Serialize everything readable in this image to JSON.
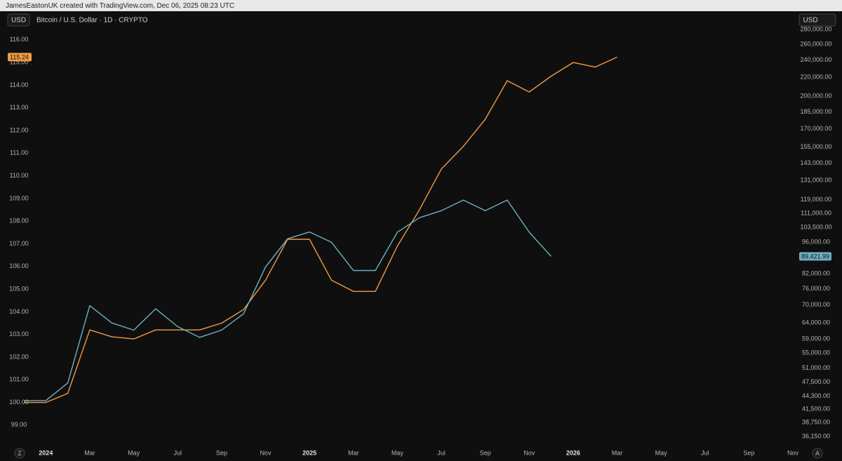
{
  "header": {
    "attribution": "JamesEastonUK created with TradingView.com, Dec 06, 2025 08:23 UTC",
    "currency_left": "USD",
    "symbol": "Bitcoin / U.S. Dollar · 1D · CRYPTO",
    "currency_right": "USD"
  },
  "footer_buttons": [
    "Z",
    "A"
  ],
  "chart_data": {
    "type": "line",
    "x": [
      "2023-12",
      "2024-01",
      "2024-02",
      "2024-03",
      "2024-04",
      "2024-05",
      "2024-06",
      "2024-07",
      "2024-08",
      "2024-09",
      "2024-10",
      "2024-11",
      "2024-12",
      "2025-01",
      "2025-02",
      "2025-03",
      "2025-04",
      "2025-05",
      "2025-06",
      "2025-07",
      "2025-08",
      "2025-09",
      "2025-10",
      "2025-11",
      "2025-12",
      "2026-01",
      "2026-02",
      "2026-03"
    ],
    "xlim": [
      "2023-12",
      "2026-11"
    ],
    "xticks": [
      {
        "value": "2024-01",
        "label": "2024"
      },
      {
        "value": "2024-03",
        "label": "Mar"
      },
      {
        "value": "2024-05",
        "label": "May"
      },
      {
        "value": "2024-07",
        "label": "Jul"
      },
      {
        "value": "2024-09",
        "label": "Sep"
      },
      {
        "value": "2024-11",
        "label": "Nov"
      },
      {
        "value": "2025-01",
        "label": "2025"
      },
      {
        "value": "2025-03",
        "label": "Mar"
      },
      {
        "value": "2025-05",
        "label": "May"
      },
      {
        "value": "2025-07",
        "label": "Jul"
      },
      {
        "value": "2025-09",
        "label": "Sep"
      },
      {
        "value": "2025-11",
        "label": "Nov"
      },
      {
        "value": "2026-01",
        "label": "2026"
      },
      {
        "value": "2026-03",
        "label": "Mar"
      },
      {
        "value": "2026-05",
        "label": "May"
      },
      {
        "value": "2026-07",
        "label": "Jul"
      },
      {
        "value": "2026-09",
        "label": "Sep"
      },
      {
        "value": "2026-11",
        "label": "Nov"
      }
    ],
    "ylim": [
      98.5,
      116.46
    ],
    "yticks": [
      {
        "value": 99,
        "label": "99.00"
      },
      {
        "value": 100,
        "label": "100.00"
      },
      {
        "value": 101,
        "label": "101.00"
      },
      {
        "value": 102,
        "label": "102.00"
      },
      {
        "value": 103,
        "label": "103.00"
      },
      {
        "value": 104,
        "label": "104.00"
      },
      {
        "value": 105,
        "label": "105.00"
      },
      {
        "value": 106,
        "label": "106.00"
      },
      {
        "value": 107,
        "label": "107.00"
      },
      {
        "value": 108,
        "label": "108.00"
      },
      {
        "value": 109,
        "label": "109.00"
      },
      {
        "value": 110,
        "label": "110.00"
      },
      {
        "value": 111,
        "label": "111.00"
      },
      {
        "value": 112,
        "label": "112.00"
      },
      {
        "value": 113,
        "label": "113.00"
      },
      {
        "value": 114,
        "label": "114.00"
      },
      {
        "value": 115,
        "label": "115.00"
      },
      {
        "value": 116,
        "label": "116.00"
      }
    ],
    "y2lim": [
      36150,
      280000
    ],
    "y2_log_scale": true,
    "y2ticks": [
      {
        "value": 280000,
        "label": "280,000.00"
      },
      {
        "value": 260000,
        "label": "260,000.00"
      },
      {
        "value": 240000,
        "label": "240,000.00"
      },
      {
        "value": 220000,
        "label": "220,000.00"
      },
      {
        "value": 200000,
        "label": "200,000.00"
      },
      {
        "value": 185000,
        "label": "185,000.00"
      },
      {
        "value": 170000,
        "label": "170,000.00"
      },
      {
        "value": 155000,
        "label": "155,000.00"
      },
      {
        "value": 143000,
        "label": "143,000.00"
      },
      {
        "value": 131000,
        "label": "131,000.00"
      },
      {
        "value": 119000,
        "label": "119,000.00"
      },
      {
        "value": 111000,
        "label": "111,000.00"
      },
      {
        "value": 103500,
        "label": "103,500.00"
      },
      {
        "value": 96000,
        "label": "96,000.00"
      },
      {
        "value": 82000,
        "label": "82,000.00"
      },
      {
        "value": 76000,
        "label": "76,000.00"
      },
      {
        "value": 70000,
        "label": "70,000.00"
      },
      {
        "value": 64000,
        "label": "64,000.00"
      },
      {
        "value": 59000,
        "label": "59,000.00"
      },
      {
        "value": 55000,
        "label": "55,000.00"
      },
      {
        "value": 51000,
        "label": "51,000.00"
      },
      {
        "value": 47500,
        "label": "47,500.00"
      },
      {
        "value": 44300,
        "label": "44,300.00"
      },
      {
        "value": 41500,
        "label": "41,500.00"
      },
      {
        "value": 38750,
        "label": "38,750.00"
      },
      {
        "value": 36150,
        "label": "36,150.00"
      }
    ],
    "grid": false,
    "series": [
      {
        "color": "#f39a45",
        "values": [
          100.0,
          100.0,
          100.4,
          103.2,
          102.9,
          102.8,
          103.2,
          103.2,
          103.2,
          103.5,
          104.1,
          105.4,
          107.2,
          107.2,
          105.4,
          104.9,
          104.9,
          106.9,
          108.5,
          110.3,
          111.3,
          112.5,
          114.2,
          113.7,
          114.4,
          115.0,
          114.8,
          115.24
        ],
        "last_label": "115.24"
      },
      {
        "color": "#6eb0c2",
        "axis": "y2",
        "values": [
          43300,
          43300,
          47300,
          69800,
          64000,
          61700,
          68700,
          62800,
          59500,
          61700,
          67000,
          84800,
          97700,
          101100,
          96000,
          83300,
          83300,
          101000,
          108600,
          112500,
          118700,
          112500,
          118700,
          101000,
          89421.99,
          null,
          null,
          null
        ],
        "last_label": "89,421.99"
      }
    ]
  }
}
